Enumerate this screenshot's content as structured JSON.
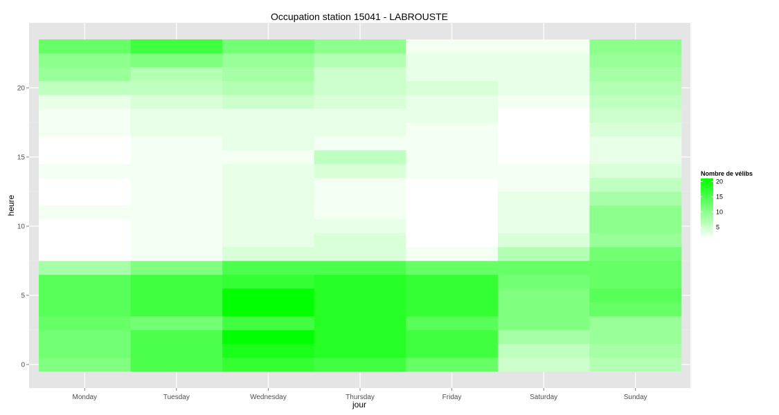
{
  "chart_data": {
    "type": "heatmap",
    "title": "Occupation station 15041 - LABROUSTE",
    "xlabel": "jour",
    "ylabel": "heure",
    "x_categories": [
      "Monday",
      "Tuesday",
      "Wednesday",
      "Thursday",
      "Friday",
      "Saturday",
      "Sunday"
    ],
    "y_hours": [
      0,
      1,
      2,
      3,
      4,
      5,
      6,
      7,
      8,
      9,
      10,
      11,
      12,
      13,
      14,
      15,
      16,
      17,
      18,
      19,
      20,
      21,
      22,
      23
    ],
    "y_ticks": [
      0,
      5,
      10,
      15,
      20
    ],
    "ylim": [
      -0.5,
      23.5
    ],
    "legend": {
      "title": "Nombre de vélibs",
      "ticks": [
        5,
        10,
        15,
        20
      ],
      "min": 1,
      "max": 21,
      "low_color": "#ffffff",
      "high_color": "#00ff00"
    },
    "grid": true,
    "legend_position": "right",
    "values": {
      "Monday": [
        11,
        12,
        12,
        13,
        14,
        14,
        14,
        8,
        1,
        1,
        1,
        2,
        1,
        1,
        2,
        1,
        1,
        2,
        2,
        3,
        6,
        9,
        10,
        13
      ],
      "Tuesday": [
        15,
        15,
        15,
        12,
        16,
        16,
        16,
        11,
        2,
        2,
        2,
        2,
        2,
        2,
        2,
        2,
        2,
        3,
        3,
        4,
        6,
        7,
        11,
        16
      ],
      "Wednesday": [
        17,
        19,
        21,
        16,
        21,
        21,
        17,
        15,
        4,
        3,
        3,
        3,
        3,
        3,
        3,
        2,
        3,
        3,
        3,
        5,
        7,
        8,
        9,
        12
      ],
      "Thursday": [
        16,
        18,
        18,
        18,
        18,
        18,
        18,
        15,
        4,
        4,
        3,
        2,
        2,
        2,
        4,
        6,
        2,
        3,
        3,
        4,
        5,
        5,
        7,
        10
      ],
      "Friday": [
        13,
        16,
        16,
        14,
        17,
        17,
        17,
        13,
        2,
        1,
        1,
        1,
        1,
        1,
        2,
        2,
        2,
        2,
        3,
        3,
        4,
        3,
        3,
        2
      ],
      "Saturday": [
        5,
        6,
        8,
        11,
        11,
        11,
        12,
        13,
        7,
        4,
        3,
        3,
        3,
        2,
        2,
        1,
        1,
        1,
        1,
        2,
        3,
        3,
        3,
        2
      ],
      "Sunday": [
        7,
        8,
        9,
        9,
        13,
        14,
        13,
        13,
        12,
        9,
        10,
        10,
        8,
        6,
        4,
        3,
        3,
        4,
        5,
        6,
        7,
        8,
        9,
        10
      ]
    }
  }
}
